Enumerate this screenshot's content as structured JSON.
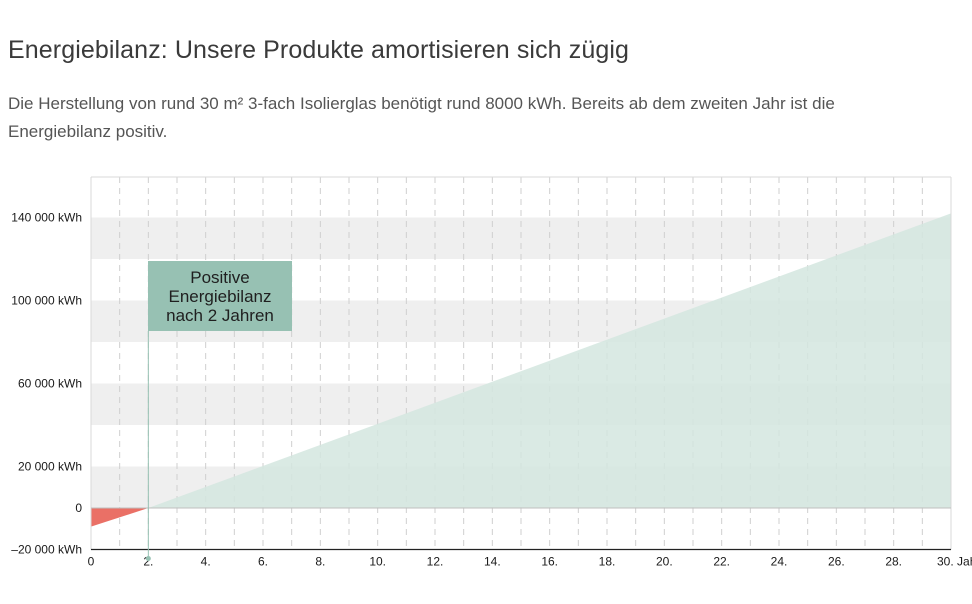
{
  "title": "Energiebilanz: Unsere Produkte amortisieren sich zügig",
  "subtitle": "Die Herstellung von rund 30 m² 3-fach Isolierglas benötigt rund 8000 kWh. Bereits ab dem zweiten Jahr ist die Energiebilanz positiv.",
  "annotation": "Positive\nEnergiebilanz\nnach 2 Jahren",
  "colors": {
    "positive_fill": "#d3e6df",
    "negative_fill": "#ea7066",
    "band": "#efefef",
    "callout": "#97c1b3"
  },
  "chart_data": {
    "type": "area",
    "title": "",
    "xlabel": "",
    "ylabel": "",
    "xlim": [
      0,
      30
    ],
    "ylim": [
      -20000,
      160000
    ],
    "x": [
      0,
      2,
      30
    ],
    "y": [
      -9000,
      0,
      142000
    ],
    "break_even_year": 2,
    "y_ticks": [
      {
        "value": 140000,
        "label": "140 000 kWh"
      },
      {
        "value": 100000,
        "label": "100 000 kWh"
      },
      {
        "value": 60000,
        "label": "60 000 kWh"
      },
      {
        "value": 20000,
        "label": "20 000 kWh"
      },
      {
        "value": 0,
        "label": "0"
      },
      {
        "value": -20000,
        "label": "–20 000 kWh"
      }
    ],
    "x_ticks": [
      {
        "value": 0,
        "label": "0"
      },
      {
        "value": 2,
        "label": "2."
      },
      {
        "value": 4,
        "label": "4."
      },
      {
        "value": 6,
        "label": "6."
      },
      {
        "value": 8,
        "label": "8."
      },
      {
        "value": 10,
        "label": "10."
      },
      {
        "value": 12,
        "label": "12."
      },
      {
        "value": 14,
        "label": "14."
      },
      {
        "value": 16,
        "label": "16."
      },
      {
        "value": 18,
        "label": "18."
      },
      {
        "value": 20,
        "label": "20."
      },
      {
        "value": 22,
        "label": "22."
      },
      {
        "value": 24,
        "label": "24."
      },
      {
        "value": 26,
        "label": "26."
      },
      {
        "value": 28,
        "label": "28."
      },
      {
        "value": 30,
        "label": "30. Jahr"
      }
    ],
    "bands": [
      [
        120000,
        140000
      ],
      [
        80000,
        100000
      ],
      [
        40000,
        60000
      ],
      [
        0,
        20000
      ]
    ]
  }
}
